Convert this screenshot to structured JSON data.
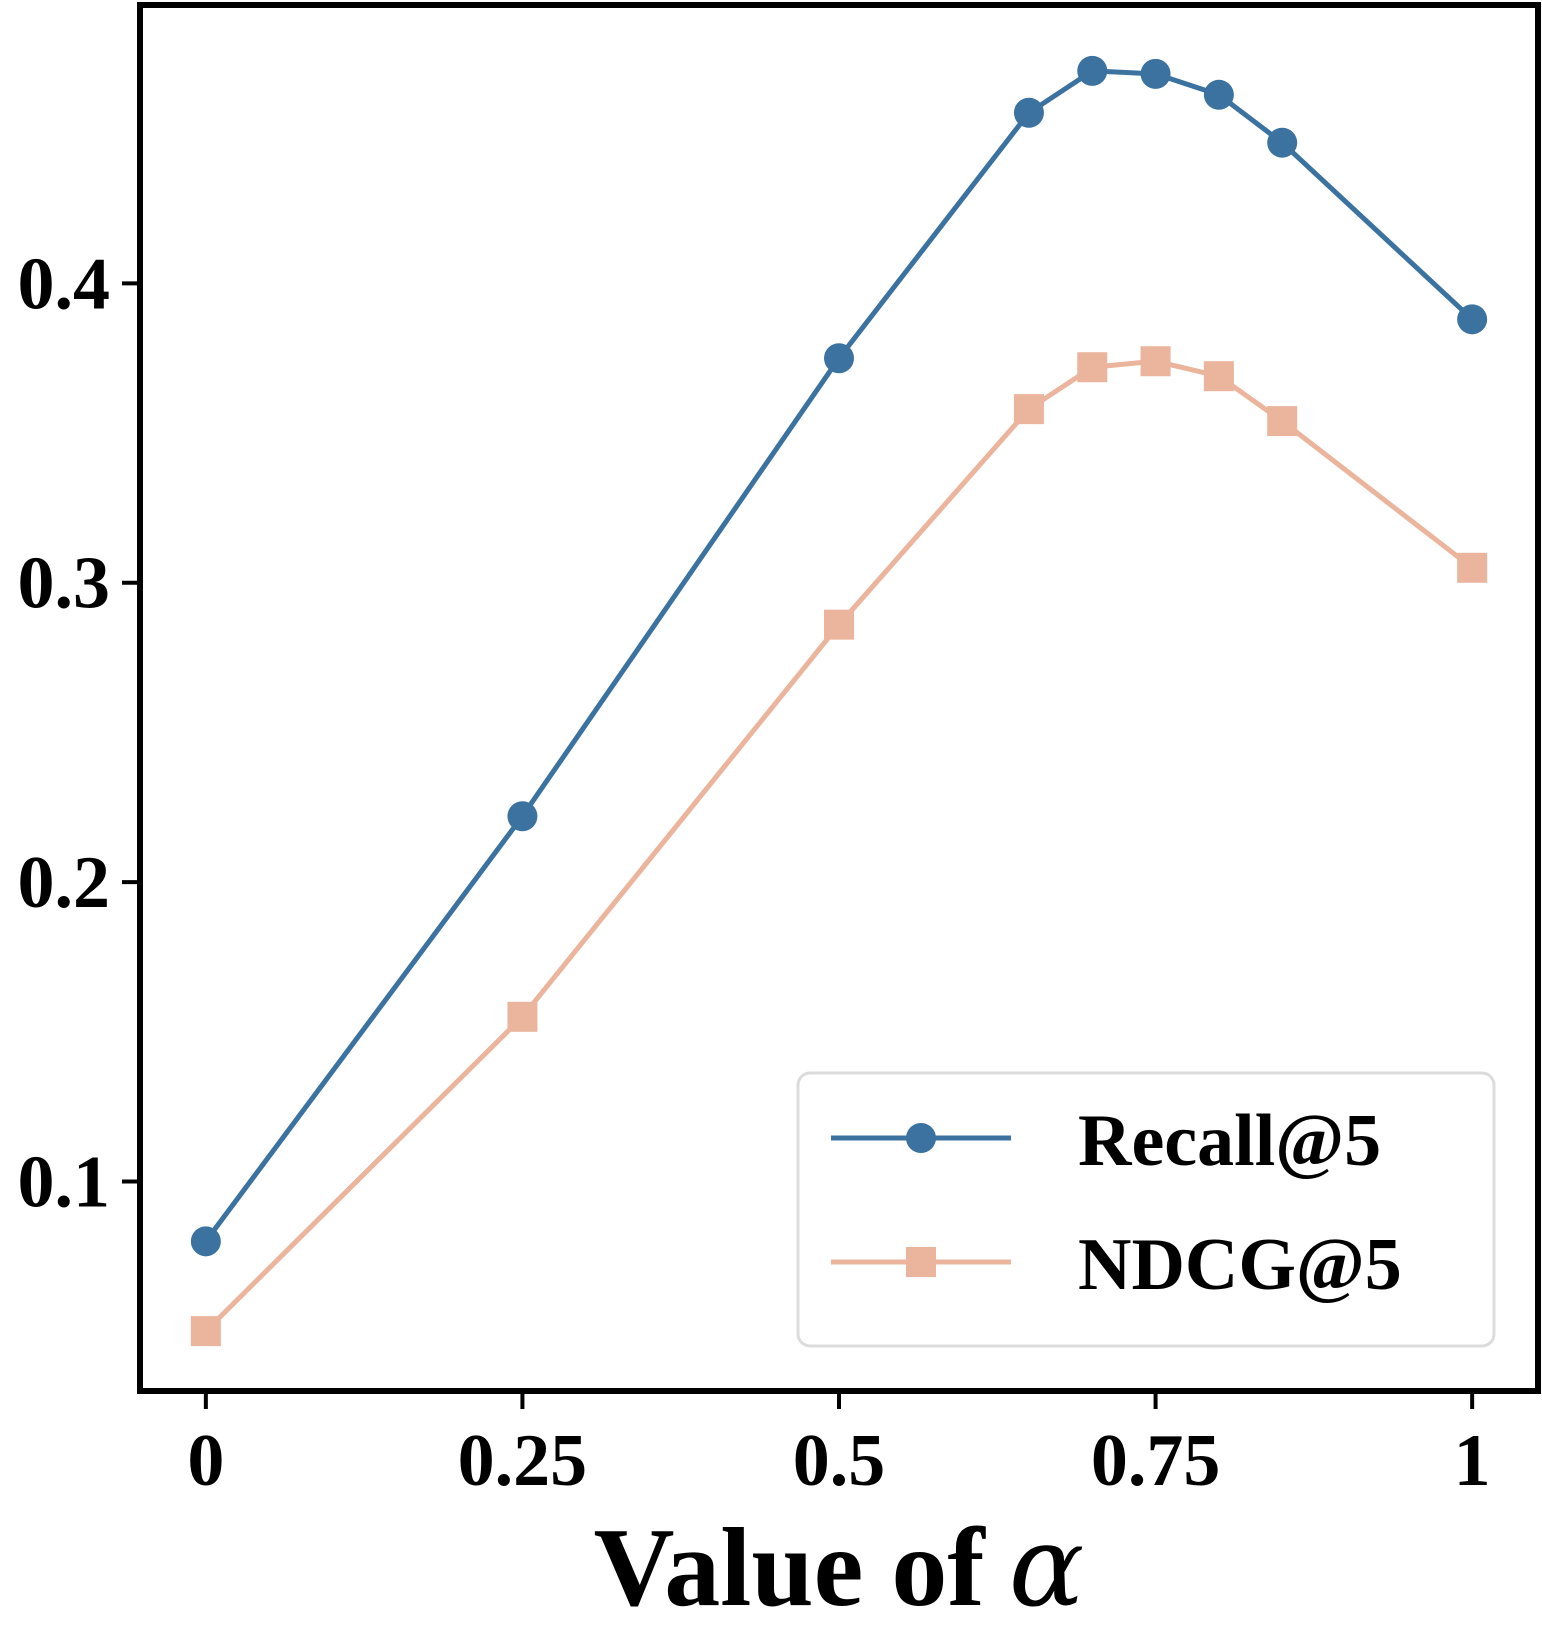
{
  "chart_data": {
    "type": "line",
    "title": "",
    "xlabel": "Value of",
    "xlabel_symbol": "α",
    "ylabel": "",
    "x": [
      0,
      0.25,
      0.5,
      0.65,
      0.7,
      0.75,
      0.8,
      0.85,
      1
    ],
    "xticks": [
      0,
      0.25,
      0.5,
      0.75,
      1
    ],
    "xtick_labels": [
      "0",
      "0.25",
      "0.5",
      "0.75",
      "1"
    ],
    "yticks": [
      0.1,
      0.2,
      0.3,
      0.4
    ],
    "ytick_labels": [
      "0.1",
      "0.2",
      "0.3",
      "0.4"
    ],
    "xlim": [
      -0.052,
      1.052
    ],
    "ylim": [
      0.03,
      0.493
    ],
    "grid": false,
    "legend_position": "lower-right",
    "series": [
      {
        "name": "Recall@5",
        "color": "#3b72a0",
        "marker": "circle",
        "values": [
          0.08,
          0.222,
          0.375,
          0.457,
          0.471,
          0.47,
          0.463,
          0.447,
          0.388
        ]
      },
      {
        "name": "NDCG@5",
        "color": "#ebb49c",
        "marker": "square",
        "values": [
          0.05,
          0.155,
          0.286,
          0.358,
          0.372,
          0.374,
          0.369,
          0.354,
          0.305
        ]
      }
    ]
  }
}
